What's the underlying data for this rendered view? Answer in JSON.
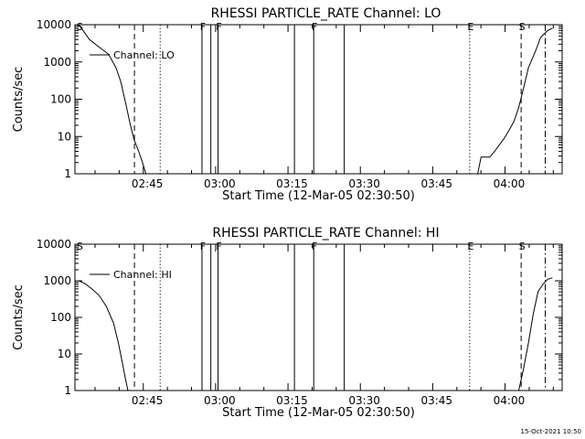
{
  "chart_data": [
    {
      "type": "line",
      "title": "RHESSI PARTICLE_RATE Channel: LO",
      "xlabel": "Start Time (12-Mar-05 02:30:50)",
      "ylabel": "Counts/sec",
      "yscale": "log",
      "xlim_minutes_after_0230": [
        0,
        101
      ],
      "ylim": [
        1,
        10000
      ],
      "xticks": [
        "02:45",
        "03:00",
        "03:15",
        "03:30",
        "03:45",
        "04:00"
      ],
      "yticks": [
        "1",
        "10",
        "100",
        "1000",
        "10000"
      ],
      "legend": {
        "label": "Channel: LO",
        "position": "top-left"
      },
      "markers": [
        {
          "label": "S",
          "time": "02:30:50",
          "style": "none"
        },
        {
          "label": "",
          "time": "02:42:20",
          "style": "dashed"
        },
        {
          "label": "",
          "time": "02:47:40",
          "style": "dotted"
        },
        {
          "label": "F",
          "time": "02:56:20",
          "style": "solid"
        },
        {
          "label": "",
          "time": "02:58:10",
          "style": "solid"
        },
        {
          "label": "F",
          "time": "02:59:40",
          "style": "solid"
        },
        {
          "label": "",
          "time": "03:15:30",
          "style": "solid"
        },
        {
          "label": "F",
          "time": "03:19:30",
          "style": "solid"
        },
        {
          "label": "",
          "time": "03:25:50",
          "style": "solid"
        },
        {
          "label": "E",
          "time": "03:51:50",
          "style": "dotted"
        },
        {
          "label": "S",
          "time": "04:02:30",
          "style": "dashed"
        },
        {
          "label": "",
          "time": "04:07:30",
          "style": "dashdot"
        }
      ],
      "series": [
        {
          "segments": [
            [
              [
                0.8,
                10000
              ],
              [
                1.5,
                7500
              ],
              [
                3,
                4000
              ],
              [
                5,
                2500
              ],
              [
                7,
                1600
              ],
              [
                8.5,
                700
              ],
              [
                9.5,
                300
              ],
              [
                10.5,
                80
              ],
              [
                11.5,
                20
              ],
              [
                12.3,
                8
              ],
              [
                13.2,
                4
              ],
              [
                14,
                2
              ],
              [
                14.7,
                1
              ]
            ],
            [
              [
                83.5,
                1
              ],
              [
                84.2,
                2.8
              ],
              [
                86,
                2.8
              ],
              [
                87,
                4
              ],
              [
                88,
                6
              ],
              [
                89,
                9
              ],
              [
                90,
                15
              ],
              [
                91,
                25
              ],
              [
                92,
                60
              ],
              [
                93,
                200
              ],
              [
                94,
                700
              ],
              [
                95.5,
                2000
              ],
              [
                96.5,
                4500
              ],
              [
                98,
                7000
              ],
              [
                99,
                8000
              ]
            ]
          ]
        }
      ]
    },
    {
      "type": "line",
      "title": "RHESSI PARTICLE_RATE Channel: HI",
      "xlabel": "Start Time (12-Mar-05 02:30:50)",
      "ylabel": "Counts/sec",
      "yscale": "log",
      "xlim_minutes_after_0230": [
        0,
        101
      ],
      "ylim": [
        1,
        10000
      ],
      "xticks": [
        "02:45",
        "03:00",
        "03:15",
        "03:30",
        "03:45",
        "04:00"
      ],
      "yticks": [
        "1",
        "10",
        "100",
        "1000",
        "10000"
      ],
      "legend": {
        "label": "Channel: HI",
        "position": "top-left"
      },
      "markers": [
        {
          "label": "S",
          "time": "02:30:50",
          "style": "none"
        },
        {
          "label": "",
          "time": "02:42:20",
          "style": "dashed"
        },
        {
          "label": "",
          "time": "02:47:40",
          "style": "dotted"
        },
        {
          "label": "F",
          "time": "02:56:20",
          "style": "solid"
        },
        {
          "label": "",
          "time": "02:58:10",
          "style": "solid"
        },
        {
          "label": "F",
          "time": "02:59:40",
          "style": "solid"
        },
        {
          "label": "",
          "time": "03:15:30",
          "style": "solid"
        },
        {
          "label": "F",
          "time": "03:19:30",
          "style": "solid"
        },
        {
          "label": "",
          "time": "03:25:50",
          "style": "solid"
        },
        {
          "label": "E",
          "time": "03:51:50",
          "style": "dotted"
        },
        {
          "label": "S",
          "time": "04:02:30",
          "style": "dashed"
        },
        {
          "label": "",
          "time": "04:07:30",
          "style": "dashdot"
        }
      ],
      "series": [
        {
          "segments": [
            [
              [
                0.8,
                1000
              ],
              [
                2,
                850
              ],
              [
                3.5,
                600
              ],
              [
                5,
                400
              ],
              [
                6.5,
                200
              ],
              [
                8,
                70
              ],
              [
                9,
                20
              ],
              [
                9.8,
                6
              ],
              [
                10.5,
                2
              ],
              [
                11,
                1
              ]
            ],
            [
              [
                92,
                1
              ],
              [
                93,
                4
              ],
              [
                94,
                20
              ],
              [
                95,
                120
              ],
              [
                96,
                500
              ],
              [
                97,
                800
              ],
              [
                98,
                1100
              ],
              [
                99,
                1200
              ]
            ]
          ]
        }
      ]
    }
  ],
  "footer": {
    "date_stamp": "15-Oct-2021 10:50"
  }
}
